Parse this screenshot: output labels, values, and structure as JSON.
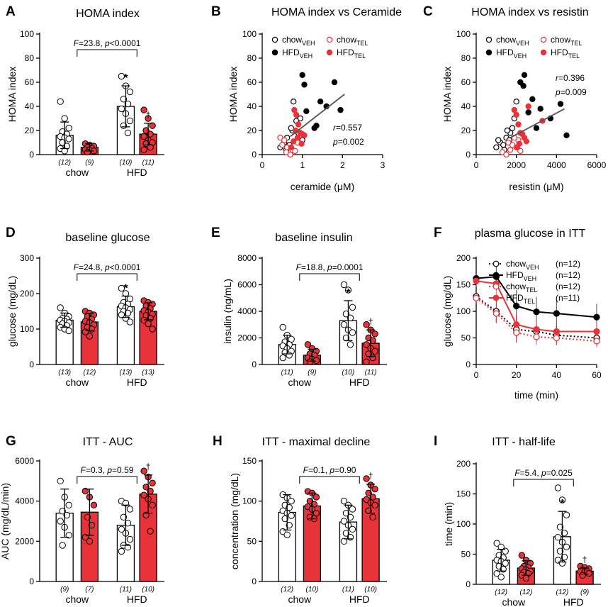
{
  "colors": {
    "veh": "#ffffff",
    "tel": "#e8333a",
    "hfd_veh": "#000000",
    "axis": "#000000",
    "fit": "#555555"
  },
  "chart_data": [
    {
      "type": "bar",
      "panel": "A",
      "title": "HOMA index",
      "ylabel": "HOMA index",
      "ylim": [
        0,
        100
      ],
      "yticks": [
        0,
        20,
        40,
        60,
        80,
        100
      ],
      "groups": [
        "chow",
        "HFD"
      ],
      "series": [
        {
          "name": "VEH",
          "means": [
            16,
            40
          ],
          "errors": [
            11,
            17
          ]
        },
        {
          "name": "TEL",
          "means": [
            6,
            17
          ],
          "errors": [
            3,
            9
          ]
        }
      ],
      "n": [
        "(12)",
        "(9)",
        "(10)",
        "(11)"
      ],
      "points": [
        [
          44,
          30,
          22,
          19,
          17,
          15,
          14,
          13,
          10,
          7,
          5,
          3
        ],
        [
          9,
          8,
          7,
          6,
          5,
          4,
          4,
          3,
          2
        ],
        [
          65,
          57,
          52,
          46,
          42,
          38,
          34,
          28,
          24,
          18
        ],
        [
          37,
          30,
          24,
          20,
          17,
          15,
          12,
          10,
          9,
          6,
          4
        ]
      ],
      "stats": {
        "f_label": "F",
        "f_text": "=23.8, ",
        "p_label": "p",
        "p_text": "<0.0001"
      },
      "markers": {
        "star": "*",
        "dagger": "†"
      }
    },
    {
      "type": "scatter",
      "panel": "B",
      "title": "HOMA index vs Ceramide",
      "xlabel": "ceramide (μM)",
      "ylabel": "HOMA index",
      "xlim": [
        0,
        3
      ],
      "ylim": [
        0,
        100
      ],
      "xticks": [
        0,
        1,
        2,
        3
      ],
      "yticks": [
        0,
        20,
        40,
        60,
        80,
        100
      ],
      "legend": [
        {
          "base": "chow",
          "sub": "VEH",
          "style": "open-black"
        },
        {
          "base": "chow",
          "sub": "TEL",
          "style": "open-red"
        },
        {
          "base": "HFD",
          "sub": "VEH",
          "style": "filled-black"
        },
        {
          "base": "HFD",
          "sub": "TEL",
          "style": "filled-red"
        }
      ],
      "groups": [
        {
          "style": "open-black",
          "x": [
            0.45,
            0.55,
            0.62,
            0.68,
            0.75,
            0.78,
            0.85,
            0.9,
            0.95,
            1.0,
            0.72,
            0.6
          ],
          "y": [
            6,
            10,
            14,
            8,
            20,
            44,
            28,
            18,
            30,
            12,
            22,
            4
          ]
        },
        {
          "style": "open-red",
          "x": [
            0.45,
            0.5,
            0.6,
            0.62,
            0.7,
            0.75,
            0.82,
            0.88,
            0.55
          ],
          "y": [
            14,
            8,
            2,
            6,
            0,
            4,
            3,
            10,
            12
          ]
        },
        {
          "style": "filled-black",
          "x": [
            1.0,
            1.05,
            1.1,
            1.35,
            1.45,
            1.6,
            1.8,
            1.95,
            1.3,
            0.95
          ],
          "y": [
            66,
            58,
            36,
            24,
            44,
            40,
            60,
            37,
            22,
            18
          ]
        },
        {
          "style": "filled-red",
          "x": [
            0.8,
            0.85,
            0.9,
            0.95,
            1.0,
            0.88,
            0.78,
            1.05,
            0.72,
            0.98,
            0.83
          ],
          "y": [
            37,
            33,
            25,
            18,
            17,
            14,
            11,
            16,
            6,
            9,
            20
          ]
        }
      ],
      "fit": {
        "x": [
          0.7,
          2.05
        ],
        "y": [
          15,
          50
        ]
      },
      "stats": {
        "r_label": "r",
        "r_text": "=0.557",
        "p_label": "p",
        "p_text": "=0.002"
      }
    },
    {
      "type": "scatter",
      "panel": "C",
      "title": "HOMA index vs resistin",
      "xlabel": "resistin (μM)",
      "ylabel": "HOMA index",
      "xlim": [
        0,
        6000
      ],
      "ylim": [
        0,
        100
      ],
      "xticks": [
        0,
        2000,
        4000,
        6000
      ],
      "yticks": [
        0,
        20,
        40,
        60,
        80,
        100
      ],
      "legend": [
        {
          "base": "chow",
          "sub": "VEH",
          "style": "open-black"
        },
        {
          "base": "chow",
          "sub": "TEL",
          "style": "open-red"
        },
        {
          "base": "HFD",
          "sub": "VEH",
          "style": "filled-black"
        },
        {
          "base": "HFD",
          "sub": "TEL",
          "style": "filled-red"
        }
      ],
      "groups": [
        {
          "style": "open-black",
          "x": [
            1000,
            1200,
            1350,
            1500,
            1650,
            1800,
            1900,
            2000,
            1700,
            1400,
            1100,
            1550
          ],
          "y": [
            6,
            10,
            8,
            14,
            12,
            22,
            30,
            44,
            18,
            4,
            12,
            20
          ]
        },
        {
          "style": "open-red",
          "x": [
            1300,
            1500,
            1700,
            1800,
            2000,
            2100,
            2200,
            1600,
            1900
          ],
          "y": [
            2,
            0,
            4,
            8,
            6,
            12,
            3,
            10,
            14
          ]
        },
        {
          "style": "filled-black",
          "x": [
            2200,
            2350,
            2400,
            2600,
            3000,
            3200,
            3700,
            4200,
            4500,
            2800
          ],
          "y": [
            60,
            57,
            66,
            35,
            22,
            38,
            30,
            42,
            16,
            46
          ]
        },
        {
          "style": "filled-red",
          "x": [
            1900,
            2000,
            2100,
            2200,
            2300,
            2400,
            2500,
            2600,
            3300,
            2150,
            2050
          ],
          "y": [
            37,
            33,
            25,
            18,
            17,
            14,
            11,
            40,
            28,
            9,
            6
          ]
        }
      ],
      "fit": {
        "x": [
          1700,
          4400
        ],
        "y": [
          14,
          38
        ]
      },
      "stats": {
        "r_label": "r",
        "r_text": "=0.396",
        "p_label": "p",
        "p_text": "=0.009"
      }
    },
    {
      "type": "bar",
      "panel": "D",
      "title": "baseline glucose",
      "ylabel": "glucose (mg/dL)",
      "ylim": [
        0,
        300
      ],
      "yticks": [
        0,
        100,
        200,
        300
      ],
      "groups": [
        "chow",
        "HFD"
      ],
      "series": [
        {
          "name": "VEH",
          "means": [
            125,
            163
          ],
          "errors": [
            20,
            30
          ]
        },
        {
          "name": "TEL",
          "means": [
            120,
            150
          ],
          "errors": [
            24,
            24
          ]
        }
      ],
      "n": [
        "(13)",
        "(12)",
        "(13)",
        "(13)"
      ],
      "points": [
        [
          160,
          145,
          135,
          130,
          128,
          125,
          122,
          118,
          115,
          110,
          105,
          100,
          95
        ],
        [
          150,
          145,
          140,
          135,
          128,
          122,
          118,
          112,
          105,
          100,
          92,
          80
        ],
        [
          215,
          200,
          185,
          175,
          170,
          165,
          160,
          155,
          150,
          145,
          140,
          130,
          120
        ],
        [
          180,
          175,
          170,
          165,
          158,
          152,
          148,
          142,
          138,
          130,
          125,
          115,
          100
        ]
      ],
      "stats": {
        "f_label": "F",
        "f_text": "=24.8, ",
        "p_label": "p",
        "p_text": "<0.0001"
      },
      "markers": {
        "star": "*",
        "dagger": ""
      }
    },
    {
      "type": "bar",
      "panel": "E",
      "title": "baseline insulin",
      "ylabel": "insulin (ng/mL)",
      "ylim": [
        0,
        8000
      ],
      "yticks": [
        0,
        2000,
        4000,
        6000,
        8000
      ],
      "groups": [
        "chow",
        "HFD"
      ],
      "series": [
        {
          "name": "VEH",
          "means": [
            1500,
            3300
          ],
          "errors": [
            700,
            1500
          ]
        },
        {
          "name": "TEL",
          "means": [
            700,
            1600
          ],
          "errors": [
            450,
            1000
          ]
        }
      ],
      "n": [
        "(11)",
        "(9)",
        "(10)",
        "(11)"
      ],
      "points": [
        [
          2800,
          2200,
          1900,
          1700,
          1500,
          1400,
          1200,
          1000,
          900,
          700,
          500
        ],
        [
          1500,
          1200,
          1000,
          800,
          700,
          500,
          400,
          300,
          200
        ],
        [
          6000,
          5600,
          4300,
          3800,
          3500,
          3000,
          2600,
          2400,
          2000,
          1500
        ],
        [
          3000,
          2600,
          2300,
          2000,
          1800,
          1500,
          1200,
          1000,
          800,
          500,
          200
        ]
      ],
      "stats": {
        "f_label": "F",
        "f_text": "=18.8, ",
        "p_label": "p",
        "p_text": "=0.0001"
      },
      "markers": {
        "star": "*",
        "dagger": "†"
      }
    },
    {
      "type": "line",
      "panel": "F",
      "title": "plasma glucose in ITT",
      "xlabel": "time (min)",
      "ylabel": "glucose (mg/dL)",
      "xlim": [
        0,
        60
      ],
      "ylim": [
        0,
        200
      ],
      "xticks": [
        0,
        20,
        40,
        60
      ],
      "yticks": [
        0,
        50,
        100,
        150,
        200
      ],
      "x": [
        0,
        10,
        20,
        30,
        40,
        60
      ],
      "series": [
        {
          "base": "chow",
          "sub": "VEH",
          "n": "(n=12)",
          "style": "chow-veh",
          "values": [
            128,
            100,
            66,
            62,
            55,
            50
          ],
          "errors": [
            10,
            22,
            25,
            20,
            18,
            15
          ]
        },
        {
          "base": "HFD",
          "sub": "VEH",
          "n": "(n=12)",
          "style": "hfd-veh",
          "values": [
            162,
            165,
            110,
            99,
            96,
            89
          ],
          "errors": [
            10,
            25,
            30,
            28,
            28,
            25
          ]
        },
        {
          "base": "chow",
          "sub": "TEL",
          "n": "(n=12)",
          "style": "chow-tel",
          "values": [
            125,
            96,
            60,
            52,
            50,
            44
          ],
          "errors": [
            10,
            18,
            15,
            15,
            14,
            12
          ]
        },
        {
          "base": "HFD",
          "sub": "TEL",
          "n": "(n=11)",
          "style": "hfd-tel",
          "values": [
            157,
            152,
            75,
            66,
            62,
            62
          ],
          "errors": [
            12,
            22,
            22,
            18,
            20,
            18
          ]
        }
      ]
    },
    {
      "type": "bar",
      "panel": "G",
      "title": "ITT - AUC",
      "ylabel": "AUC (mg/dL/min)",
      "ylim": [
        0,
        6000
      ],
      "yticks": [
        0,
        2000,
        4000,
        6000
      ],
      "groups": [
        "chow",
        "HFD"
      ],
      "series": [
        {
          "name": "VEH",
          "means": [
            3400,
            2800
          ],
          "errors": [
            1200,
            1000
          ]
        },
        {
          "name": "TEL",
          "means": [
            3450,
            4350
          ],
          "errors": [
            1150,
            950
          ]
        }
      ],
      "n": [
        "(9)",
        "(7)",
        "(11)",
        "(10)"
      ],
      "points": [
        [
          5000,
          4200,
          3800,
          3500,
          3300,
          3000,
          2700,
          2300,
          1800
        ],
        [
          4500,
          4200,
          3800,
          3200,
          2800,
          2200,
          2000
        ],
        [
          4000,
          3900,
          3600,
          3200,
          2900,
          2600,
          2400,
          2100,
          1800,
          1700,
          1500
        ],
        [
          5500,
          5200,
          4900,
          4700,
          4500,
          4300,
          4100,
          3800,
          3300,
          2500
        ]
      ],
      "stats": {
        "f_label": "F",
        "f_text": "=0.3, ",
        "p_label": "p",
        "p_text": "=0.59"
      },
      "markers": {
        "star": "",
        "dagger": "†"
      }
    },
    {
      "type": "bar",
      "panel": "H",
      "title": "ITT - maximal decline",
      "ylabel": "concentration (mg/dL)",
      "ylim": [
        0,
        150
      ],
      "yticks": [
        0,
        50,
        100,
        150
      ],
      "groups": [
        "chow",
        "HFD"
      ],
      "series": [
        {
          "name": "VEH",
          "means": [
            86,
            74
          ],
          "errors": [
            22,
            21
          ]
        },
        {
          "name": "TEL",
          "means": [
            94,
            103
          ],
          "errors": [
            16,
            18
          ]
        }
      ],
      "n": [
        "(12)",
        "(10)",
        "(11)",
        "(10)"
      ],
      "points": [
        [
          108,
          104,
          100,
          95,
          92,
          88,
          85,
          82,
          78,
          70,
          62,
          58
        ],
        [
          112,
          110,
          105,
          100,
          96,
          93,
          90,
          85,
          80,
          78
        ],
        [
          100,
          95,
          90,
          85,
          80,
          75,
          70,
          65,
          60,
          55,
          50
        ],
        [
          128,
          120,
          115,
          110,
          105,
          102,
          98,
          95,
          88,
          80
        ]
      ],
      "stats": {
        "f_label": "F",
        "f_text": "=0.1, ",
        "p_label": "p",
        "p_text": "=0.90"
      },
      "markers": {
        "star": "",
        "dagger": "†"
      }
    },
    {
      "type": "bar",
      "panel": "I",
      "title": "ITT - half-life",
      "ylabel": "time (min)",
      "ylim": [
        0,
        200
      ],
      "yticks": [
        0,
        50,
        100,
        150,
        200
      ],
      "groups": [
        "chow",
        "HFD"
      ],
      "series": [
        {
          "name": "VEH",
          "means": [
            40,
            79
          ],
          "errors": [
            18,
            42
          ]
        },
        {
          "name": "TEL",
          "means": [
            27,
            22
          ],
          "errors": [
            12,
            5
          ]
        }
      ],
      "n": [
        "(12)",
        "(12)",
        "(12)",
        "(9)"
      ],
      "points": [
        [
          68,
          62,
          55,
          48,
          44,
          40,
          38,
          35,
          30,
          25,
          18,
          12
        ],
        [
          48,
          40,
          35,
          30,
          28,
          26,
          24,
          22,
          20,
          18,
          15,
          10
        ],
        [
          160,
          140,
          115,
          95,
          85,
          78,
          70,
          62,
          55,
          45,
          40,
          35
        ],
        [
          30,
          28,
          26,
          24,
          22,
          21,
          20,
          18,
          15
        ]
      ],
      "stats": {
        "f_label": "F",
        "f_text": "=5.4, ",
        "p_label": "p",
        "p_text": "=0.025"
      },
      "markers": {
        "star": "*",
        "dagger": "†"
      }
    }
  ]
}
